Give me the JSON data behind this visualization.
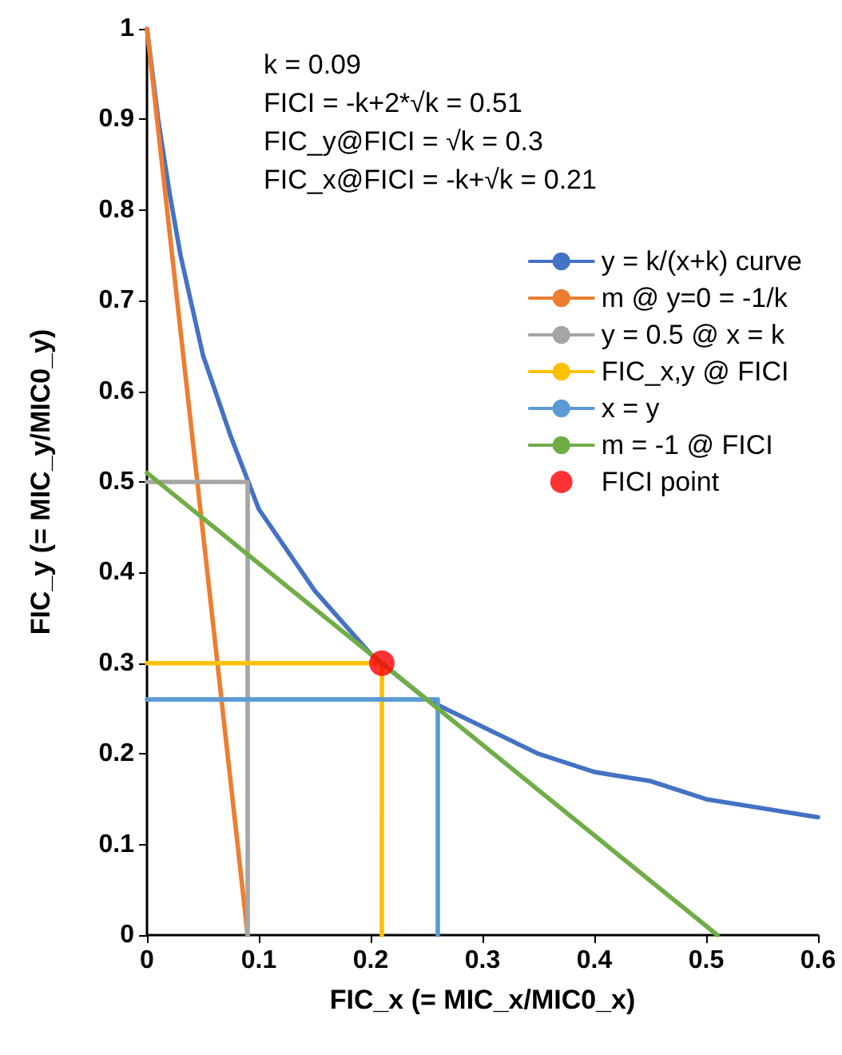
{
  "chart_data": {
    "type": "line",
    "xlabel": "FIC_x (= MIC_x/MIC0_x)",
    "ylabel": "FIC_y (= MIC_y/MIC0_y)",
    "annotations": [
      "k = 0.09",
      "FICI = -k+2*√k = 0.51",
      "FIC_y@FICI = √k = 0.3",
      "FIC_x@FICI = -k+√k = 0.21"
    ],
    "xlim": [
      0,
      0.6
    ],
    "xticks": [
      0,
      0.1,
      0.2,
      0.3,
      0.4,
      0.5,
      0.6
    ],
    "ylim": [
      0,
      1
    ],
    "yticks": [
      0,
      0.1,
      0.2,
      0.3,
      0.4,
      0.5,
      0.6,
      0.7,
      0.8,
      0.9,
      1
    ],
    "grid": false,
    "legend": "top right",
    "marker": "none",
    "line_style": "solid",
    "series": [
      {
        "name": "y = k/(x+k) curve",
        "color": "#4472c4",
        "x": [
          0,
          0.01,
          0.02,
          0.03,
          0.05,
          0.075,
          0.1,
          0.15,
          0.2,
          0.25,
          0.3,
          0.35,
          0.4,
          0.45,
          0.5,
          0.55,
          0.6
        ],
        "values": [
          1,
          0.9,
          0.82,
          0.75,
          0.64,
          0.55,
          0.47,
          0.38,
          0.31,
          0.26,
          0.23,
          0.2,
          0.18,
          0.17,
          0.15,
          0.14,
          0.13
        ]
      },
      {
        "name": "m @ y=0 = -1/k",
        "color": "#ed7d31",
        "x": [
          0,
          0.09
        ],
        "values": [
          1,
          0
        ]
      },
      {
        "name": "y = 0.5 @ x = k",
        "color": "#a5a5a5",
        "x": [
          0,
          0.09,
          0.09
        ],
        "values": [
          0.5,
          0.5,
          0
        ]
      },
      {
        "name": "FIC_x,y @ FICI",
        "color": "#ffc000",
        "x": [
          0,
          0.21,
          0.21
        ],
        "values": [
          0.3,
          0.3,
          0
        ]
      },
      {
        "name": "x = y",
        "color": "#5b9bd5",
        "x": [
          0,
          0.26,
          0.26
        ],
        "values": [
          0.26,
          0.26,
          0
        ]
      },
      {
        "name": "m = -1 @ FICI",
        "color": "#70ad47",
        "x": [
          0,
          0.51
        ],
        "values": [
          0.51,
          0
        ]
      },
      {
        "name": "FICI point",
        "type": "scatter",
        "marker": "circle",
        "color": "#ff0000",
        "x": [
          0.21
        ],
        "values": [
          0.3
        ]
      }
    ]
  }
}
